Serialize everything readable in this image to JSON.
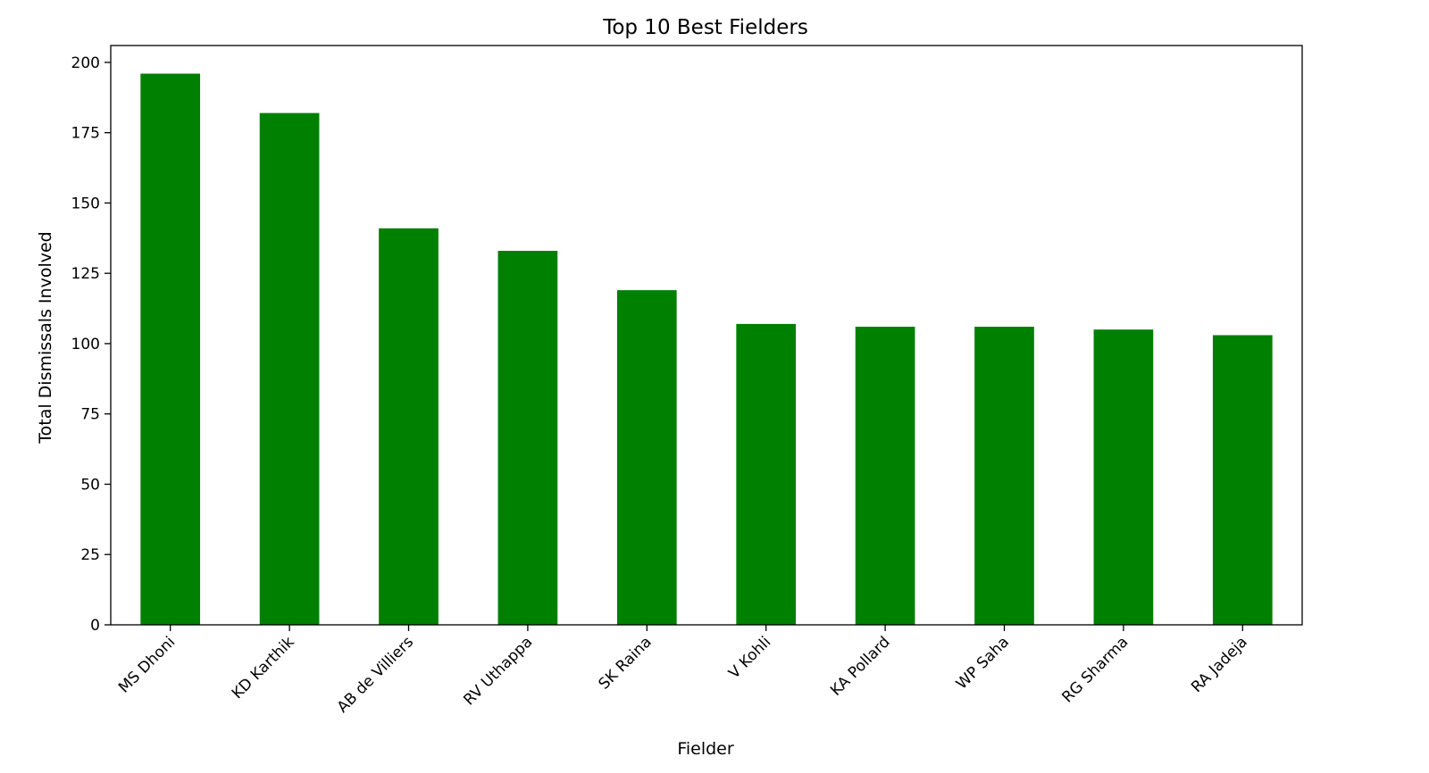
{
  "chart_data": {
    "type": "bar",
    "title": "Top 10 Best Fielders",
    "xlabel": "Fielder",
    "ylabel": "Total Dismissals Involved",
    "categories": [
      "MS Dhoni",
      "KD Karthik",
      "AB de Villiers",
      "RV Uthappa",
      "SK Raina",
      "V Kohli",
      "KA Pollard",
      "WP Saha",
      "RG Sharma",
      "RA Jadeja"
    ],
    "values": [
      196,
      182,
      141,
      133,
      119,
      107,
      106,
      106,
      105,
      103
    ],
    "ylim": [
      0,
      206
    ],
    "yticks": [
      0,
      25,
      50,
      75,
      100,
      125,
      150,
      175,
      200
    ],
    "grid": false,
    "colors": {
      "bar": "#008000",
      "axes": "#000000"
    }
  }
}
